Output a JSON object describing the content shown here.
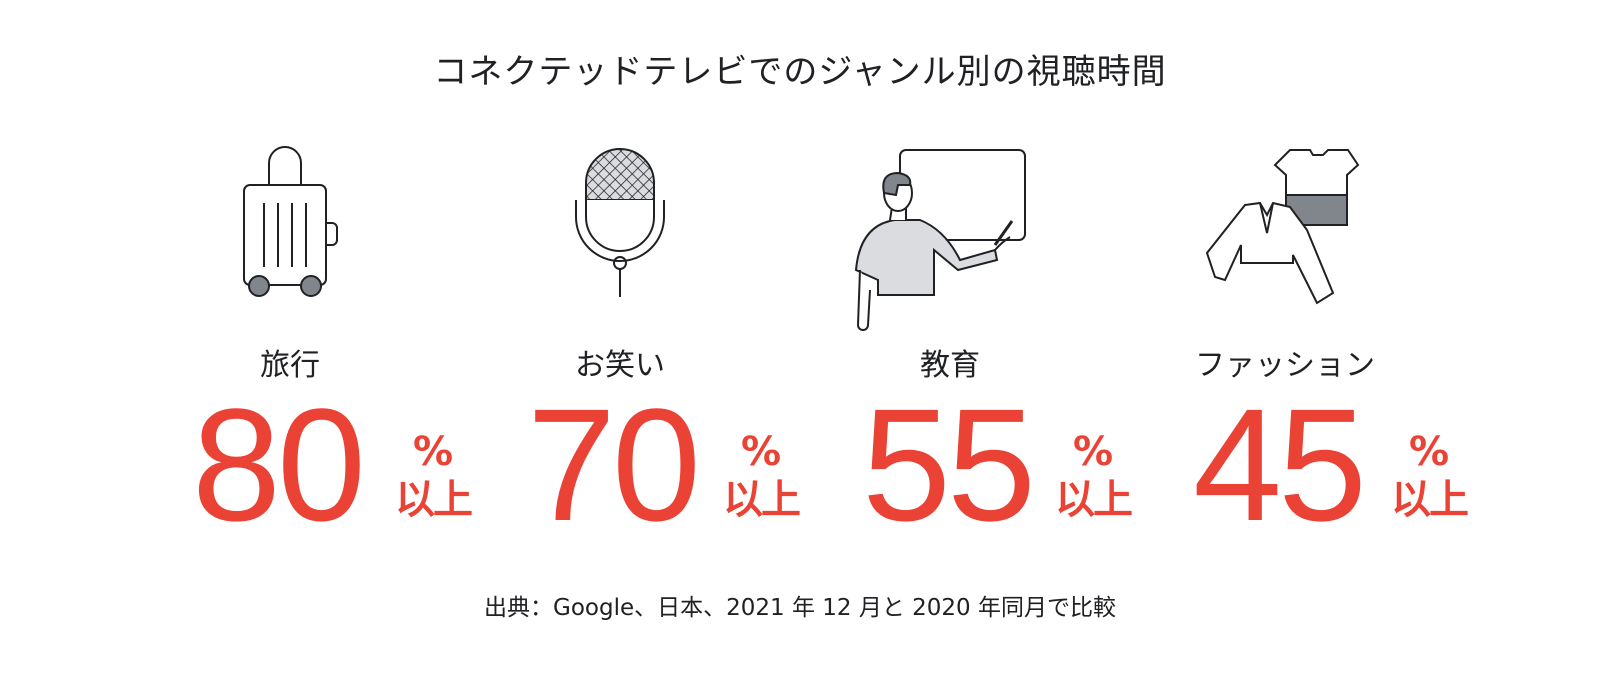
{
  "title": "コネクテッドテレビでのジャンル別の視聴時間",
  "categories": [
    {
      "label": "旅行",
      "value": "80",
      "percent_sign": "%",
      "suffix": "以上",
      "icon": "suitcase-icon"
    },
    {
      "label": "お笑い",
      "value": "70",
      "percent_sign": "%",
      "suffix": "以上",
      "icon": "microphone-icon"
    },
    {
      "label": "教育",
      "value": "55",
      "percent_sign": "%",
      "suffix": "以上",
      "icon": "teacher-icon"
    },
    {
      "label": "ファッション",
      "value": "45",
      "percent_sign": "%",
      "suffix": "以上",
      "icon": "clothing-icon"
    }
  ],
  "source": "出典：Google、日本、2021 年 12 月と 2020 年同月で比較",
  "colors": {
    "accent": "#ea4335",
    "text": "#202124",
    "icon_fill": "#dadce0",
    "icon_dark": "#80868b"
  }
}
